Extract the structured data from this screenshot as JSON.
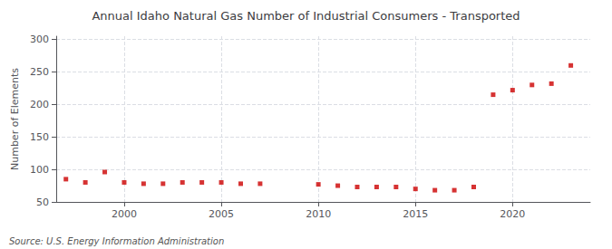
{
  "chart_data": {
    "type": "scatter",
    "title": "Annual Idaho Natural Gas Number of Industrial Consumers - Transported",
    "y_label": "Number of Elements",
    "annotations": [
      "Source: U.S. Energy Information Administration"
    ],
    "x": [
      1997,
      1998,
      1999,
      2000,
      2001,
      2002,
      2003,
      2004,
      2005,
      2006,
      2007,
      2008,
      2009,
      2010,
      2011,
      2012,
      2013,
      2014,
      2015,
      2016,
      2017,
      2018,
      2019,
      2020,
      2021,
      2022,
      2023
    ],
    "values": [
      85,
      80,
      96,
      80,
      78,
      78,
      80,
      80,
      80,
      78,
      78,
      null,
      null,
      77,
      75,
      73,
      73,
      73,
      70,
      68,
      68,
      73,
      215,
      222,
      230,
      232,
      260
    ],
    "color": "#cc0000",
    "marker": "square",
    "xlim": [
      1996.5,
      2024
    ],
    "xticks": [
      2000,
      2005,
      2010,
      2015,
      2020
    ],
    "ylim": [
      50,
      305
    ],
    "yticks": [
      50,
      100,
      150,
      200,
      250,
      300
    ],
    "grid": true
  }
}
